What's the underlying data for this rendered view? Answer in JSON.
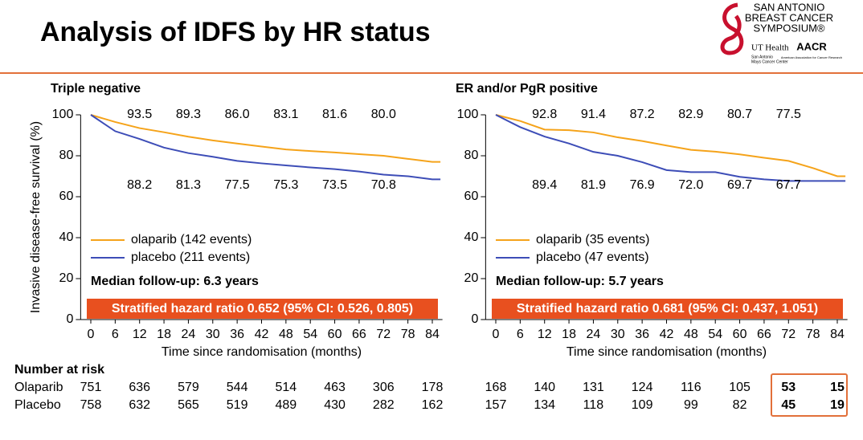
{
  "title": "Analysis of IDFS by HR status",
  "logo": {
    "lines": [
      "SAN ANTONIO",
      "BREAST CANCER",
      "SYMPOSIUM®"
    ],
    "ut": "UT Health",
    "ut_sub": [
      "San Antonio",
      "Mays Cancer Center"
    ],
    "aacr": "AACR",
    "aacr_sub": "American Association for Cancer Research"
  },
  "risk_table": {
    "title": "Number at risk",
    "row_labels": [
      "Olaparib",
      "Placebo"
    ]
  },
  "chart_data": [
    {
      "type": "line",
      "title": "Triple negative",
      "xlabel": "Time since randomisation (months)",
      "ylabel": "Invasive disease-free survival (%)",
      "x": [
        0,
        6,
        12,
        18,
        24,
        30,
        36,
        42,
        48,
        54,
        60,
        66,
        72,
        78,
        84,
        86
      ],
      "series": [
        {
          "name": "olaparib (142 events)",
          "color": "#f5a31a",
          "values": [
            100,
            96.5,
            93.5,
            91.5,
            89.3,
            87.5,
            86.0,
            84.5,
            83.1,
            82.3,
            81.6,
            80.8,
            80.0,
            78.5,
            77,
            77
          ],
          "value_labels": [
            null,
            null,
            "93.5",
            null,
            "89.3",
            null,
            "86.0",
            null,
            "83.1",
            null,
            "81.6",
            null,
            "80.0",
            null,
            null,
            null
          ]
        },
        {
          "name": "placebo (211 events)",
          "color": "#3d4db7",
          "values": [
            100,
            92,
            88.2,
            84,
            81.3,
            79.5,
            77.5,
            76.3,
            75.3,
            74.3,
            73.5,
            72.3,
            70.8,
            70,
            68.5,
            68.5
          ],
          "value_labels": [
            null,
            null,
            "88.2",
            null,
            "81.3",
            null,
            "77.5",
            null,
            "75.3",
            null,
            "73.5",
            null,
            "70.8",
            null,
            null,
            null
          ]
        }
      ],
      "xlim": [
        -2.5,
        86.5
      ],
      "xticks": [
        0,
        6,
        12,
        18,
        24,
        30,
        36,
        42,
        48,
        54,
        60,
        66,
        72,
        78,
        84
      ],
      "ylim": [
        0,
        100
      ],
      "yticks": [
        0,
        20,
        40,
        60,
        80,
        100
      ],
      "median_followup": "Median follow-up: 6.3 years",
      "hazard_ratio": "Stratified hazard ratio 0.652 (95% CI: 0.526, 0.805)",
      "at_risk": [
        [
          751,
          636,
          579,
          544,
          514,
          463,
          306,
          178
        ],
        [
          758,
          632,
          565,
          519,
          489,
          430,
          282,
          162
        ]
      ]
    },
    {
      "type": "line",
      "title": "ER and/or PgR positive",
      "xlabel": "Time since randomisation (months)",
      "x": [
        0,
        6,
        12,
        18,
        24,
        30,
        36,
        42,
        48,
        54,
        60,
        66,
        72,
        78,
        84,
        86
      ],
      "series": [
        {
          "name": "olaparib (35 events)",
          "color": "#f5a31a",
          "values": [
            100,
            97,
            92.8,
            92.5,
            91.4,
            89,
            87.2,
            85,
            82.9,
            82,
            80.7,
            79,
            77.5,
            74,
            70,
            70
          ],
          "value_labels": [
            null,
            null,
            "92.8",
            null,
            "91.4",
            null,
            "87.2",
            null,
            "82.9",
            null,
            "80.7",
            null,
            "77.5",
            null,
            null,
            null
          ]
        },
        {
          "name": "placebo (47 events)",
          "color": "#3d4db7",
          "values": [
            100,
            94,
            89.4,
            86,
            81.9,
            80,
            76.9,
            73,
            72.0,
            72,
            69.7,
            68.5,
            67.7,
            67.7,
            67.7,
            67.7
          ],
          "value_labels": [
            null,
            null,
            "89.4",
            null,
            "81.9",
            null,
            "76.9",
            null,
            "72.0",
            null,
            "69.7",
            null,
            "67.7",
            null,
            null,
            null
          ]
        }
      ],
      "xlim": [
        -2.5,
        86.5
      ],
      "xticks": [
        0,
        6,
        12,
        18,
        24,
        30,
        36,
        42,
        48,
        54,
        60,
        66,
        72,
        78,
        84
      ],
      "ylim": [
        0,
        100
      ],
      "yticks": [
        0,
        20,
        40,
        60,
        80,
        100
      ],
      "median_followup": "Median follow-up: 5.7 years",
      "hazard_ratio": "Stratified hazard ratio 0.681 (95% CI: 0.437, 1.051)",
      "at_risk": [
        [
          168,
          140,
          131,
          124,
          116,
          105,
          53,
          15
        ],
        [
          157,
          134,
          118,
          109,
          99,
          82,
          45,
          19
        ]
      ]
    }
  ]
}
